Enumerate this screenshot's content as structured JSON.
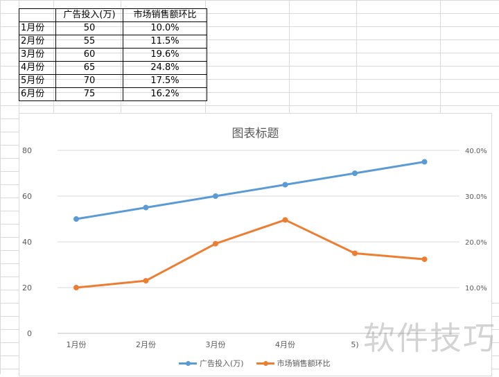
{
  "sheet": {
    "table": {
      "headers": [
        "",
        "广告投入(万)",
        "市场销售额环比"
      ],
      "rows": [
        [
          "1月份",
          "50",
          "10.0%"
        ],
        [
          "2月份",
          "55",
          "11.5%"
        ],
        [
          "3月份",
          "60",
          "19.6%"
        ],
        [
          "4月份",
          "65",
          "24.8%"
        ],
        [
          "5月份",
          "70",
          "17.5%"
        ],
        [
          "6月份",
          "75",
          "16.2%"
        ]
      ]
    }
  },
  "chart_data": {
    "type": "line",
    "title": "图表标题",
    "categories": [
      "1月份",
      "2月份",
      "3月份",
      "4月份",
      "5月份",
      "6月份"
    ],
    "visible_category_labels": [
      "1月份",
      "2月份",
      "3月份",
      "4月份",
      "5)",
      ""
    ],
    "series": [
      {
        "name": "广告投入(万)",
        "values": [
          50,
          55,
          60,
          65,
          70,
          75
        ],
        "color": "#5b9bd5",
        "axis": "left"
      },
      {
        "name": "市场销售额环比",
        "values": [
          0.1,
          0.115,
          0.196,
          0.248,
          0.175,
          0.162
        ],
        "color": "#ed7d31",
        "axis": "right"
      }
    ],
    "left_axis": {
      "min": 0,
      "max": 80,
      "ticks": [
        "0",
        "20",
        "40",
        "60",
        "80"
      ]
    },
    "right_axis": {
      "ticks": [
        "10.0%",
        "20.0%",
        "30.0%",
        "40.0%"
      ]
    },
    "grid": true,
    "legend_position": "bottom"
  },
  "watermark": {
    "text": "软件技巧"
  }
}
